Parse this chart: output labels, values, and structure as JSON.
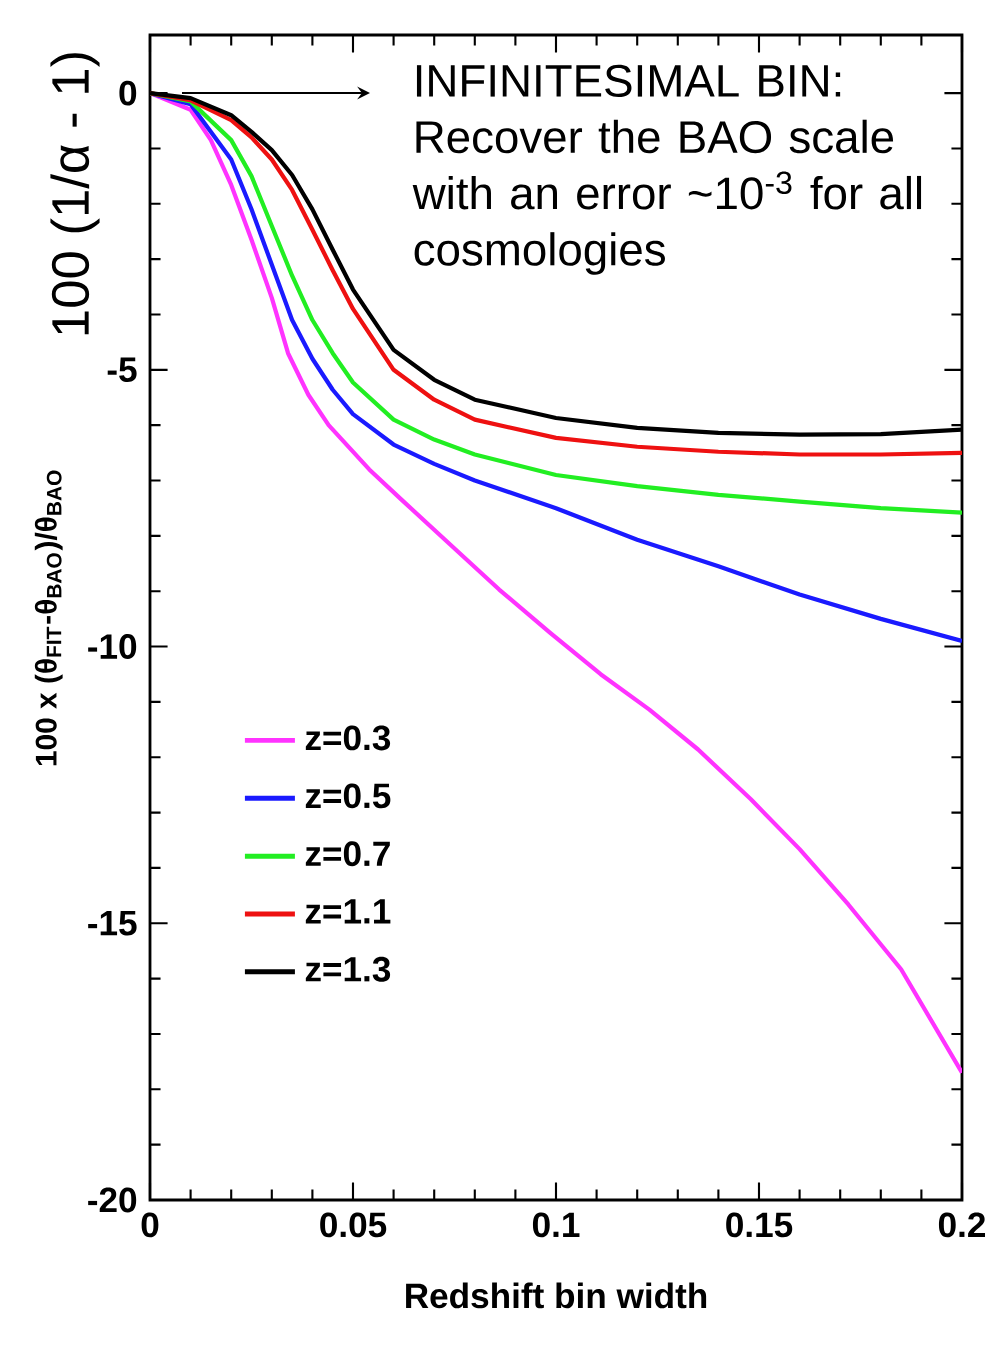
{
  "chart_data": {
    "type": "line",
    "xlabel": "Redshift bin width",
    "ylabel": "100 x (θ$_{FIT}$-θ$_{BAO}$)/θ$_{BAO}$",
    "annotations": [
      "INFINITESIMAL BIN: Recover the BAO scale with an error ~10$^{-3}$ for all cosmologies",
      "100 (1/α - 1)"
    ],
    "x": [
      0,
      0.01,
      0.02,
      0.025,
      0.03,
      0.035,
      0.04,
      0.045,
      0.05,
      0.06,
      0.07,
      0.08,
      0.1,
      0.12,
      0.14,
      0.16,
      0.18,
      0.2
    ],
    "series": [
      {
        "name": "z=0.3",
        "color": "#ff33ff",
        "x": [
          0,
          0.01,
          0.015,
          0.02,
          0.025,
          0.03,
          0.034,
          0.039,
          0.044,
          0.054,
          0.062,
          0.074,
          0.086,
          0.0985,
          0.111,
          0.123,
          0.135,
          0.148,
          0.16,
          0.172,
          0.185,
          0.2
        ],
        "values": [
          0,
          -0.3,
          -0.85,
          -1.66,
          -2.65,
          -3.7,
          -4.7,
          -5.45,
          -6.0,
          -6.8,
          -7.35,
          -8.16,
          -8.97,
          -9.75,
          -10.5,
          -11.14,
          -11.86,
          -12.76,
          -13.66,
          -14.66,
          -15.83,
          -17.7
        ]
      },
      {
        "name": "z=0.5",
        "color": "#1a1aff",
        "values": [
          0,
          -0.2,
          -1.2,
          -2.1,
          -3.1,
          -4.1,
          -4.8,
          -5.36,
          -5.8,
          -6.35,
          -6.7,
          -7.0,
          -7.5,
          -8.07,
          -8.55,
          -9.06,
          -9.5,
          -9.9
        ]
      },
      {
        "name": "z=0.7",
        "color": "#22ee22",
        "values": [
          0,
          -0.15,
          -0.85,
          -1.5,
          -2.4,
          -3.3,
          -4.1,
          -4.7,
          -5.23,
          -5.9,
          -6.26,
          -6.53,
          -6.9,
          -7.1,
          -7.26,
          -7.38,
          -7.5,
          -7.58
        ]
      },
      {
        "name": "z=1.1",
        "color": "#ee1111",
        "values": [
          0,
          -0.13,
          -0.49,
          -0.8,
          -1.2,
          -1.75,
          -2.47,
          -3.2,
          -3.9,
          -5.0,
          -5.54,
          -5.9,
          -6.23,
          -6.39,
          -6.48,
          -6.53,
          -6.53,
          -6.5
        ]
      },
      {
        "name": "z=1.3",
        "color": "#000000",
        "values": [
          0,
          -0.09,
          -0.4,
          -0.7,
          -1.03,
          -1.48,
          -2.1,
          -2.83,
          -3.55,
          -4.64,
          -5.18,
          -5.54,
          -5.87,
          -6.05,
          -6.14,
          -6.17,
          -6.16,
          -6.08
        ]
      }
    ],
    "xlim": [
      0,
      0.2
    ],
    "ylim": [
      -20,
      1.05
    ],
    "xticks": [
      0,
      0.05,
      0.1,
      0.15,
      0.2
    ],
    "yticks": [
      -20,
      -15,
      -10,
      -5,
      0
    ],
    "grid": false,
    "legend": "bottom left",
    "marker": "none",
    "line_style": "solid"
  }
}
